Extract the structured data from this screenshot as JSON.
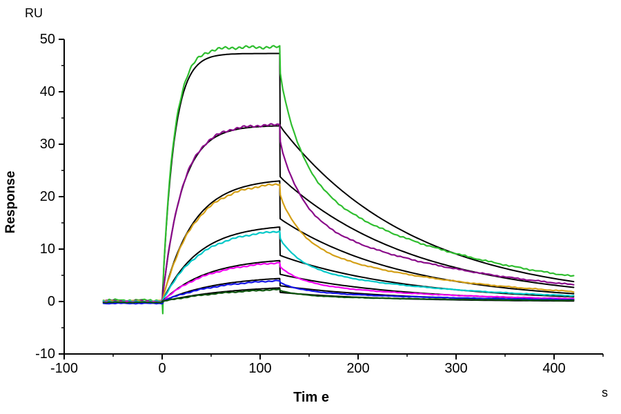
{
  "chart_data": {
    "type": "line",
    "title": "",
    "xlabel": "Tim e",
    "x_unit_label": "s",
    "ylabel": "Response",
    "y_unit_label": "RU",
    "xlim": [
      -100,
      450
    ],
    "ylim": [
      -10,
      50
    ],
    "x_major_ticks": [
      -100,
      0,
      100,
      200,
      300,
      400
    ],
    "x_minor_ticks": [
      -50,
      50,
      150,
      250,
      350,
      450
    ],
    "y_major_ticks": [
      -10,
      0,
      10,
      20,
      30,
      40,
      50
    ],
    "y_minor_ticks": [
      -5,
      5,
      15,
      25,
      35,
      45
    ],
    "grid": false,
    "legend": "none",
    "axis_color": "#000000",
    "fit_color": "#000000",
    "phases": {
      "baseline_start_s": -60,
      "injection_start_s": 0,
      "dissociation_start_s": 120,
      "trace_end_s": 420
    },
    "series": [
      {
        "name": "green",
        "color": "#2FBE2F",
        "peak_RU": 48.5,
        "fit_plateau_RU": 47.3,
        "post_jump_RU": 43.5,
        "fit_post_drop_RU": 33.5,
        "end_RU": 4.8,
        "fit_end_RU": 3.8,
        "assoc_rate": 0.085,
        "baseline_offset_RU": 0.25,
        "start_dip_RU": -2.3
      },
      {
        "name": "purple",
        "color": "#8A0B8A",
        "peak_RU": 33.7,
        "fit_plateau_RU": 33.5,
        "post_jump_RU": 30.5,
        "fit_post_drop_RU": 23.8,
        "end_RU": 3.2,
        "fit_end_RU": 2.7,
        "assoc_rate": 0.05,
        "baseline_offset_RU": 0.1,
        "start_dip_RU": null
      },
      {
        "name": "orange",
        "color": "#D4A017",
        "peak_RU": 22.4,
        "fit_plateau_RU": 23.0,
        "post_jump_RU": 20.3,
        "fit_post_drop_RU": 15.8,
        "end_RU": 1.9,
        "fit_end_RU": 1.5,
        "assoc_rate": 0.032,
        "baseline_offset_RU": 0.05,
        "start_dip_RU": null
      },
      {
        "name": "cyan",
        "color": "#00C8C8",
        "peak_RU": 13.4,
        "fit_plateau_RU": 14.2,
        "post_jump_RU": 12.0,
        "fit_post_drop_RU": 8.8,
        "end_RU": 1.1,
        "fit_end_RU": 0.9,
        "assoc_rate": 0.027,
        "baseline_offset_RU": 0.0,
        "start_dip_RU": null
      },
      {
        "name": "magenta",
        "color": "#F000F0",
        "peak_RU": 7.4,
        "fit_plateau_RU": 7.8,
        "post_jump_RU": 6.6,
        "fit_post_drop_RU": 5.2,
        "end_RU": 0.55,
        "fit_end_RU": 0.45,
        "assoc_rate": 0.022,
        "baseline_offset_RU": -0.1,
        "start_dip_RU": null
      },
      {
        "name": "blue",
        "color": "#1414E6",
        "peak_RU": 4.0,
        "fit_plateau_RU": 4.4,
        "post_jump_RU": 3.6,
        "fit_post_drop_RU": 3.0,
        "end_RU": 0.35,
        "fit_end_RU": 0.25,
        "assoc_rate": 0.018,
        "baseline_offset_RU": -0.35,
        "start_dip_RU": null
      },
      {
        "name": "dark-green",
        "color": "#0A520A",
        "peak_RU": 2.3,
        "fit_plateau_RU": 2.6,
        "post_jump_RU": 2.1,
        "fit_post_drop_RU": 1.75,
        "end_RU": 0.2,
        "fit_end_RU": 0.1,
        "assoc_rate": 0.014,
        "baseline_offset_RU": -0.15,
        "start_dip_RU": null
      }
    ]
  }
}
